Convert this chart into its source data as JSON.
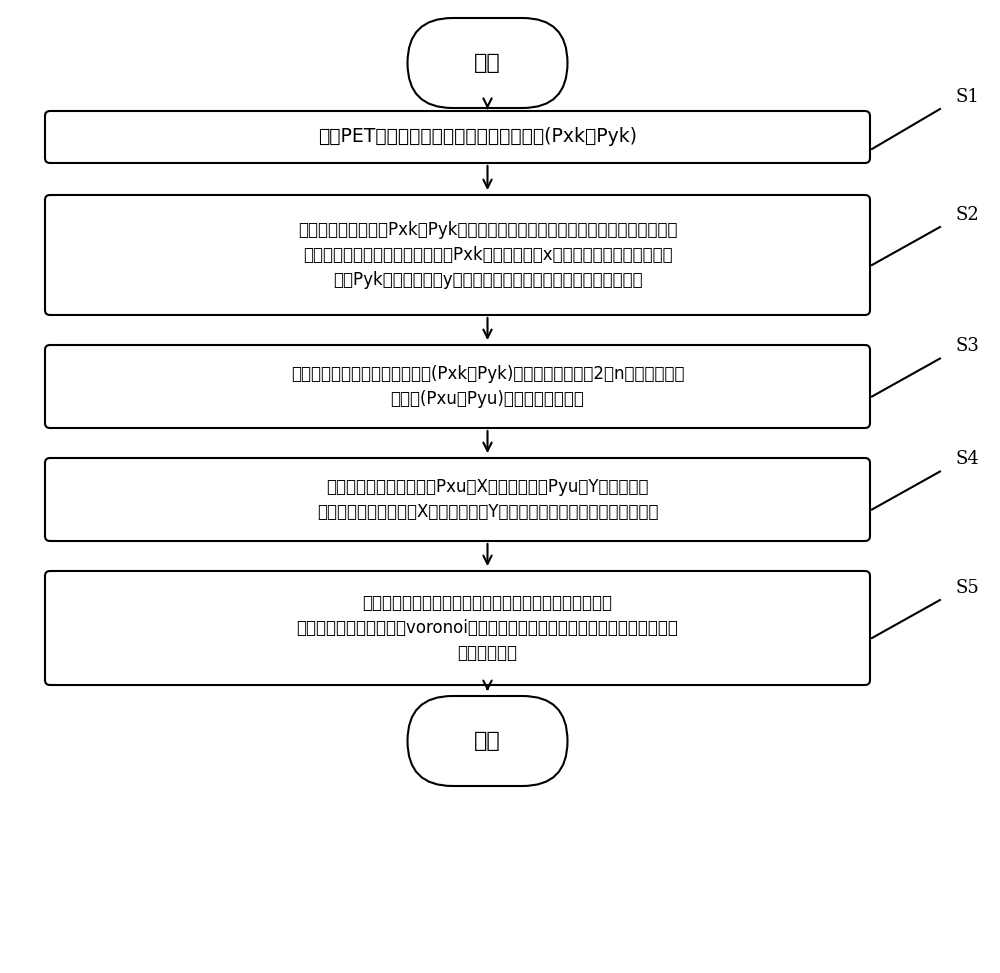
{
  "bg_color": "#ffffff",
  "border_color": "#000000",
  "text_color": "#000000",
  "arrow_color": "#000000",
  "fig_width": 10.0,
  "fig_height": 9.73,
  "start_label": "开始",
  "end_label": "结束",
  "steps": [
    {
      "id": "S1",
      "label": "获取PET探测器的各个能量信息的位置编码(Pxk，Pyk)",
      "tag": "S1"
    },
    {
      "id": "S2",
      "label": "根据所有位置编码的Pxk和Pyk作为点坐标，建立第一散点图，确定该图的上下左\n右边界的值；根据所有位置编码的Pxk的峰谷值确定x方向的边界、据所有位置编\n码的Pyk的峰谷值确定y方向的边界建立所有位置编码的第一散点图",
      "tag": "S2"
    },
    {
      "id": "S3",
      "label": "通过第一散点图对所有位置编码(Pxk，Pyk)进行归一化处理至2的n次幂的范围内\n，获取(Pxu，Pyu)构成的第二散点图",
      "tag": "S3"
    },
    {
      "id": "S4",
      "label": "对所有位置编码分别绘制Pxu的X分布直方图和Pyu的Y分布直方图\n，并统计峰谷值；根据X分布直方图和Y分布直方图的峰谷值构建第一网格图",
      "tag": "S4"
    },
    {
      "id": "S5",
      "label": "根据第一网格图内的所有位置编码的分布，求取第二散点\n图的重心；通过重心依据voronoi图生成方法构建方法构建第二网格图，即为位置\n信息的分区图",
      "tag": "S5"
    }
  ]
}
